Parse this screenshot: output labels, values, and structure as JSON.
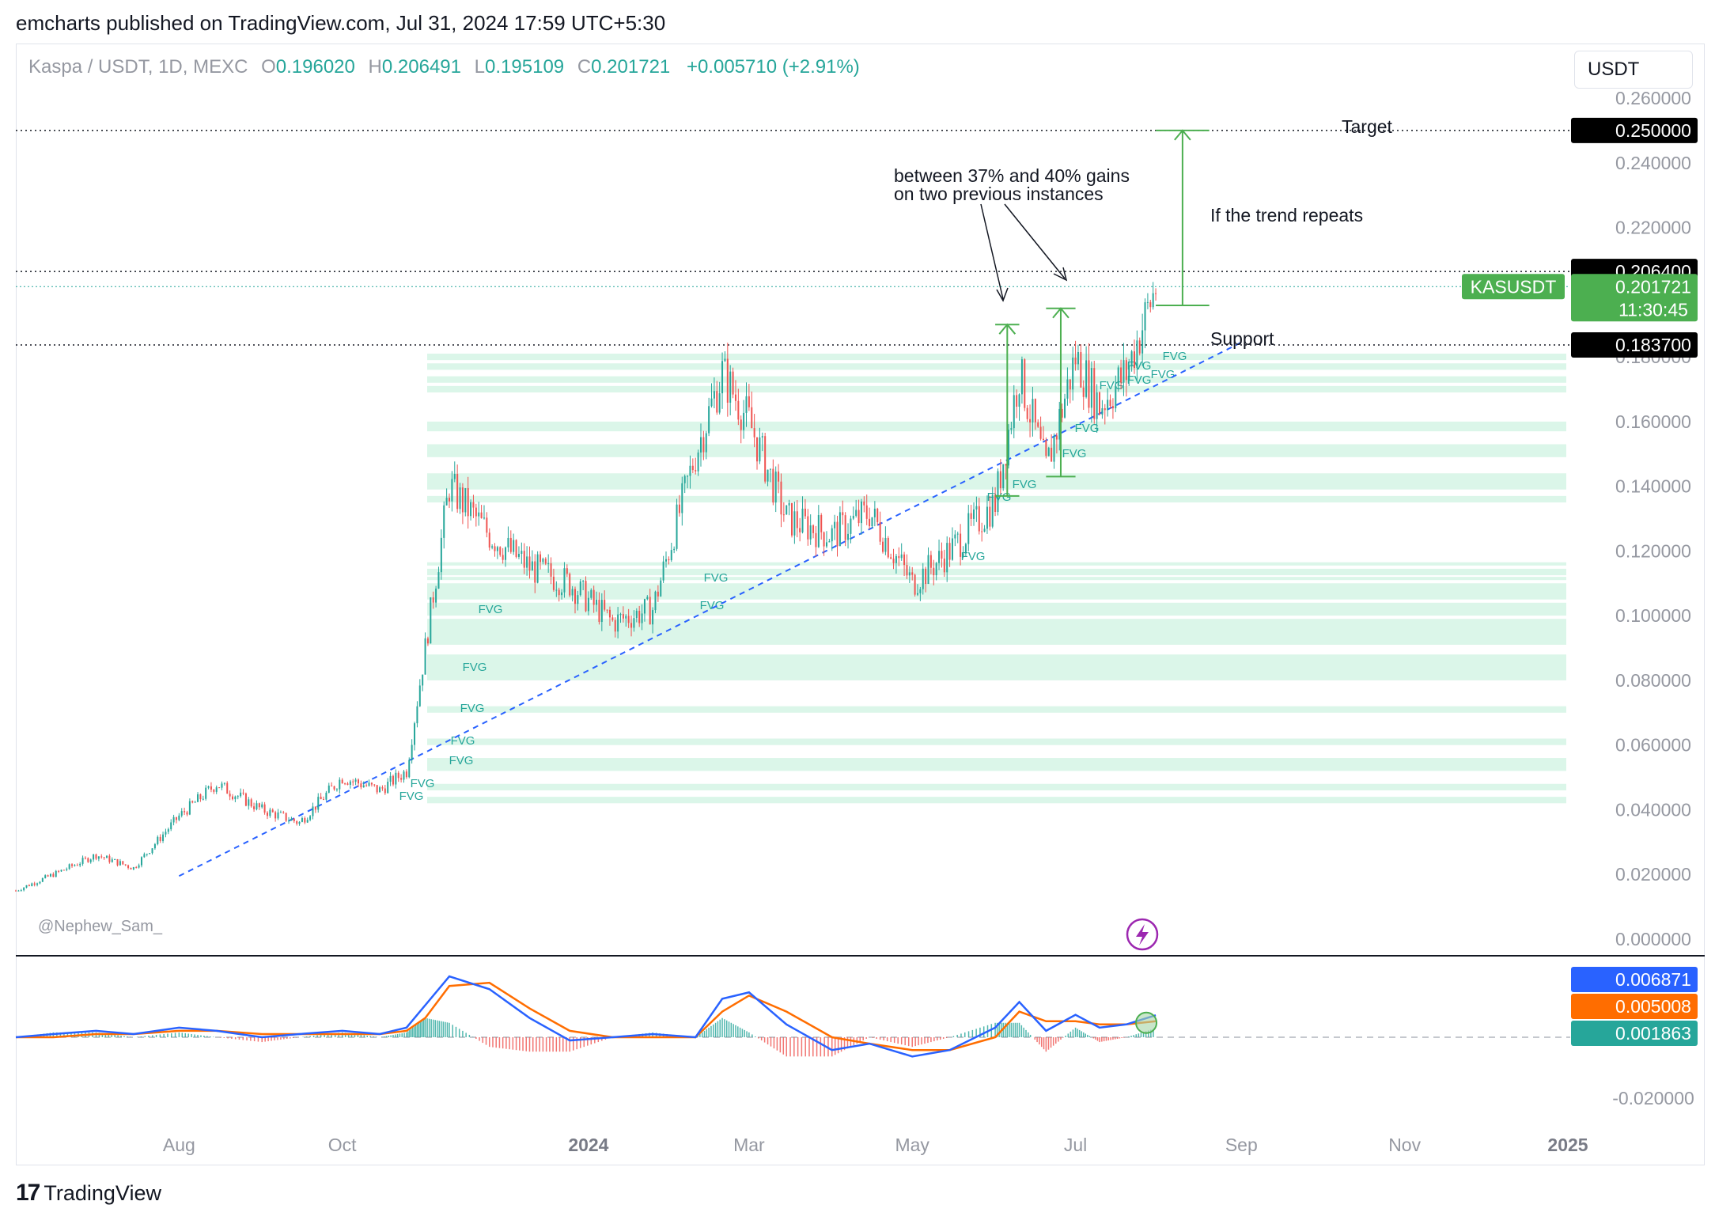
{
  "header": {
    "text": "emcharts published on TradingView.com, Jul 31, 2024 17:59 UTC+5:30"
  },
  "legend": {
    "symbol": "Kaspa / USDT, 1D, MEXC",
    "open_label": "O",
    "open": "0.196020",
    "high_label": "H",
    "high": "0.206491",
    "low_label": "L",
    "low": "0.195109",
    "close_label": "C",
    "close": "0.201721",
    "change": "+0.005710 (+2.91%)"
  },
  "currency_button": "USDT",
  "watermark": "@Nephew_Sam_",
  "footer": {
    "brand": "TradingView",
    "mark": "17"
  },
  "colors": {
    "up": "#26a69a",
    "down": "#ef5350",
    "fvg": "#ccf2e0",
    "trend": "#2962ff",
    "macd": "#2962ff",
    "signal": "#ff6d00",
    "annotation": "#4caf50"
  },
  "chart_data": [
    {
      "type": "line",
      "title": "Kaspa / USDT, 1D, MEXC",
      "x_tick_labels": [
        "Aug",
        "Oct",
        "2024",
        "Mar",
        "May",
        "Jul",
        "Sep",
        "Nov",
        "2025"
      ],
      "y_tick_labels": [
        "0.260000",
        "0.240000",
        "0.220000",
        "0.200000",
        "0.180000",
        "0.160000",
        "0.140000",
        "0.120000",
        "0.100000",
        "0.080000",
        "0.060000",
        "0.040000",
        "0.020000",
        "0.000000"
      ],
      "ylim": [
        0,
        0.26
      ],
      "series": [
        {
          "name": "KASUSDT",
          "x": [
            "2023-06-01",
            "2023-06-15",
            "2023-07-01",
            "2023-07-15",
            "2023-08-01",
            "2023-08-15",
            "2023-09-01",
            "2023-09-15",
            "2023-10-01",
            "2023-10-15",
            "2023-10-25",
            "2023-11-01",
            "2023-11-10",
            "2023-11-25",
            "2023-12-10",
            "2023-12-25",
            "2024-01-10",
            "2024-01-25",
            "2024-02-10",
            "2024-02-20",
            "2024-03-01",
            "2024-03-15",
            "2024-04-01",
            "2024-04-15",
            "2024-05-01",
            "2024-05-15",
            "2024-06-01",
            "2024-06-10",
            "2024-06-20",
            "2024-07-01",
            "2024-07-10",
            "2024-07-20",
            "2024-07-31"
          ],
          "values": [
            0.015,
            0.02,
            0.026,
            0.022,
            0.038,
            0.048,
            0.04,
            0.036,
            0.05,
            0.046,
            0.052,
            0.09,
            0.14,
            0.125,
            0.115,
            0.11,
            0.098,
            0.102,
            0.15,
            0.175,
            0.16,
            0.13,
            0.125,
            0.132,
            0.11,
            0.12,
            0.135,
            0.175,
            0.145,
            0.18,
            0.165,
            0.175,
            0.2017
          ]
        }
      ],
      "price_labels": {
        "target": "0.250000",
        "level_high": "0.206400",
        "current": "0.201721",
        "countdown": "11:30:45",
        "support": "0.183700",
        "ticker": "KASUSDT"
      },
      "levels": {
        "target": 0.25,
        "resistance": 0.2064,
        "current": 0.201721,
        "support": 0.1837
      },
      "annotations": {
        "target": "Target",
        "gains_line1": "between 37% and 40% gains",
        "gains_line2": "on two previous instances",
        "trend": "If the trend repeats",
        "support": "Support",
        "fvg": "FVG"
      },
      "fvg_zones": [
        [
          0.179,
          0.181
        ],
        [
          0.176,
          0.178
        ],
        [
          0.172,
          0.174
        ],
        [
          0.169,
          0.171
        ],
        [
          0.157,
          0.16
        ],
        [
          0.149,
          0.153
        ],
        [
          0.139,
          0.144
        ],
        [
          0.135,
          0.137
        ],
        [
          0.1155,
          0.1165
        ],
        [
          0.1125,
          0.1145
        ],
        [
          0.111,
          0.112
        ],
        [
          0.105,
          0.11
        ],
        [
          0.1,
          0.104
        ],
        [
          0.091,
          0.099
        ],
        [
          0.08,
          0.088
        ],
        [
          0.07,
          0.072
        ],
        [
          0.06,
          0.062
        ],
        [
          0.052,
          0.056
        ],
        [
          0.046,
          0.048
        ],
        [
          0.042,
          0.044
        ]
      ],
      "measure_boxes": [
        {
          "start": "2024-06-01",
          "end": "2024-06-10",
          "low": 0.137,
          "high": 0.19
        },
        {
          "start": "2024-06-20",
          "end": "2024-07-01",
          "low": 0.143,
          "high": 0.195
        },
        {
          "start": "2024-07-31",
          "end": "2024-08-20",
          "low": 0.1837,
          "high": 0.25
        }
      ],
      "grid": false
    },
    {
      "type": "line",
      "title": "",
      "y_tick_labels": [
        "-0.020000"
      ],
      "price_labels": {
        "macd": "0.006871",
        "signal": "0.005008",
        "histogram": "0.001863"
      },
      "series": [
        {
          "name": "",
          "values": [
            0.0,
            0.001,
            0.002,
            0.001,
            0.003,
            0.002,
            0.0,
            0.001,
            0.002,
            0.001,
            0.003,
            0.01,
            0.019,
            0.015,
            0.006,
            -0.001,
            0.0,
            0.001,
            0.0,
            0.012,
            0.014,
            0.004,
            -0.004,
            -0.002,
            -0.006,
            -0.004,
            0.003,
            0.011,
            0.002,
            0.007,
            0.003,
            0.004,
            0.006871
          ]
        },
        {
          "name": "",
          "values": [
            0.0,
            0.0,
            0.001,
            0.001,
            0.002,
            0.002,
            0.001,
            0.001,
            0.001,
            0.001,
            0.002,
            0.006,
            0.016,
            0.017,
            0.009,
            0.002,
            0.0,
            0.0,
            0.0,
            0.008,
            0.013,
            0.008,
            0.0,
            -0.002,
            -0.004,
            -0.004,
            0.0,
            0.008,
            0.005,
            0.005,
            0.004,
            0.004,
            0.005008
          ]
        }
      ]
    }
  ]
}
